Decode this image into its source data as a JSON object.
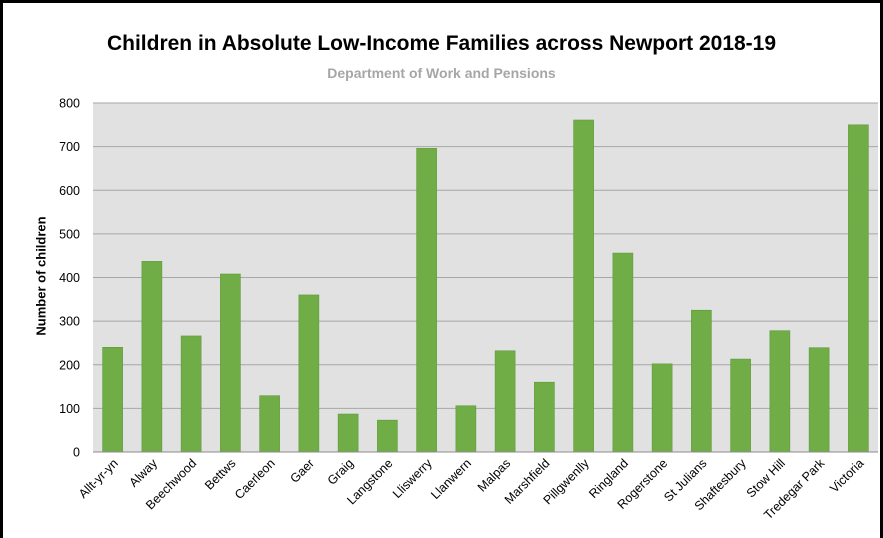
{
  "chart_data": {
    "type": "bar",
    "title": "Children in Absolute Low-Income Families across Newport 2018-19",
    "subtitle": "Department of Work and Pensions",
    "xlabel": "",
    "ylabel": "Number of children",
    "ylim": [
      0,
      800
    ],
    "yticks": [
      0,
      100,
      200,
      300,
      400,
      500,
      600,
      700,
      800
    ],
    "grid": true,
    "legend": "none",
    "categories": [
      "Allt-yr-yn",
      "Alway",
      "Beechwood",
      "Bettws",
      "Caerleon",
      "Gaer",
      "Graig",
      "Langstone",
      "Lliswerry",
      "Llanwern",
      "Malpas",
      "Marshfield",
      "Pillgwenlly",
      "Ringland",
      "Rogerstone",
      "St Julians",
      "Shaftesbury",
      "Stow Hill",
      "Tredegar Park",
      "Victoria"
    ],
    "values": [
      240,
      437,
      266,
      408,
      129,
      360,
      87,
      73,
      696,
      106,
      232,
      160,
      761,
      456,
      202,
      325,
      213,
      278,
      239,
      750
    ],
    "colors": {
      "bar": "#70ad47",
      "bar_edge": "#5e9a39",
      "plot_bg": "#e1e1e1",
      "grid": "#a6a6a6"
    }
  }
}
